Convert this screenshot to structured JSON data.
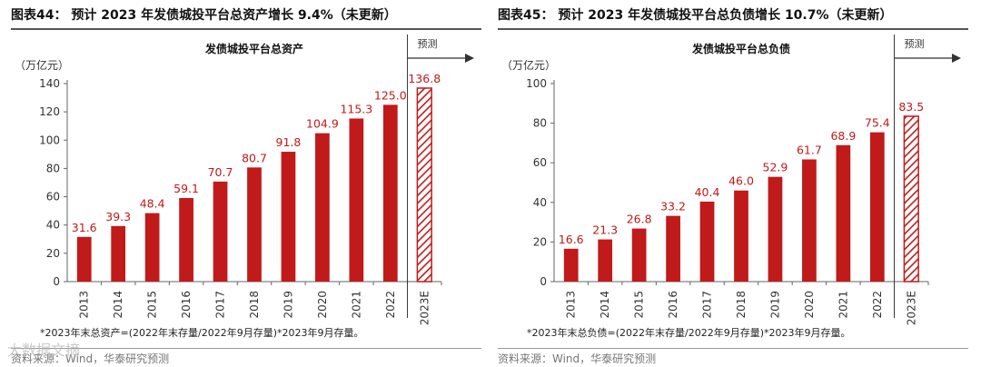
{
  "colors": {
    "bar": "#c01a1a",
    "text": "#333333",
    "forecast_hatch": "#c01a1a"
  },
  "watermark": "大数据文摘",
  "left": {
    "fig_title": "图表44：  预计 2023 年发债城投平台总资产增长 9.4%（未更新）",
    "footnote": "*2023年末总资产=(2022年末存量/2022年9月存量)*2023年9月存量。",
    "source": "资料来源：Wind，华泰研究预测"
  },
  "right": {
    "fig_title": "图表45：  预计 2023 年发债城投平台总负债增长 10.7%（未更新）",
    "footnote": "*2023年末总负债=(2022年末存量/2022年9月存量)*2023年9月存量。",
    "source": "资料来源：Wind，华泰研究预测"
  },
  "chart_data": [
    {
      "type": "bar",
      "title": "发债城投平台总资产",
      "ylabel": "（万亿元）",
      "categories": [
        "2013",
        "2014",
        "2015",
        "2016",
        "2017",
        "2018",
        "2019",
        "2020",
        "2021",
        "2022",
        "2023E"
      ],
      "values": [
        31.6,
        39.3,
        48.4,
        59.1,
        70.7,
        80.7,
        91.8,
        104.9,
        115.3,
        125.0,
        136.8
      ],
      "value_labels": [
        "31.6",
        "39.3",
        "48.4",
        "59.1",
        "70.7",
        "80.7",
        "91.8",
        "104.9",
        "115.3",
        "125.0",
        "136.8"
      ],
      "ylim": [
        0,
        140
      ],
      "yticks": [
        0,
        20,
        40,
        60,
        80,
        100,
        120,
        140
      ],
      "forecast_index": 10,
      "forecast_label": "预测",
      "grid": false
    },
    {
      "type": "bar",
      "title": "发债城投平台总负债",
      "ylabel": "（万亿元）",
      "categories": [
        "2013",
        "2014",
        "2015",
        "2016",
        "2017",
        "2018",
        "2019",
        "2020",
        "2021",
        "2022",
        "2023E"
      ],
      "values": [
        16.6,
        21.3,
        26.8,
        33.2,
        40.4,
        46.0,
        52.9,
        61.7,
        68.9,
        75.4,
        83.5
      ],
      "value_labels": [
        "16.6",
        "21.3",
        "26.8",
        "33.2",
        "40.4",
        "46.0",
        "52.9",
        "61.7",
        "68.9",
        "75.4",
        "83.5"
      ],
      "ylim": [
        0,
        100
      ],
      "yticks": [
        0,
        20,
        40,
        60,
        80,
        100
      ],
      "forecast_index": 10,
      "forecast_label": "预测",
      "grid": false
    }
  ]
}
